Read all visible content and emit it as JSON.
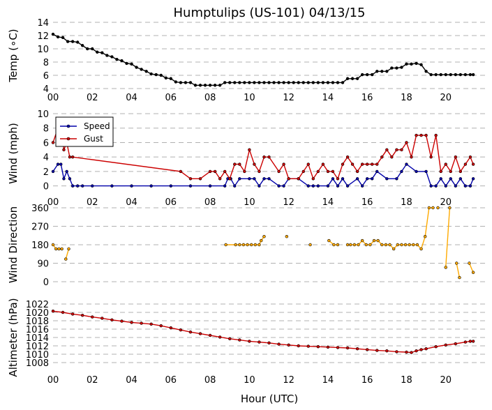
{
  "title": "Humptulips (US-101) 04/13/15",
  "xlabel": "Hour (UTC)",
  "x_ticks": [
    "00",
    "02",
    "04",
    "06",
    "08",
    "10",
    "12",
    "14",
    "16",
    "18",
    "20"
  ],
  "chart_data": [
    {
      "type": "line",
      "ylabel": "Temp (∘C)",
      "xlim": [
        0,
        22
      ],
      "ylim": [
        4,
        14
      ],
      "y_ticks": [
        4,
        6,
        8,
        10,
        12,
        14
      ],
      "grid": true,
      "series": [
        {
          "color": "#000000",
          "x": [
            0.0,
            0.25,
            0.5,
            0.75,
            1.0,
            1.25,
            1.5,
            1.75,
            2.0,
            2.25,
            2.5,
            2.75,
            3.0,
            3.25,
            3.5,
            3.75,
            4.0,
            4.25,
            4.5,
            4.75,
            5.0,
            5.25,
            5.5,
            5.75,
            6.0,
            6.25,
            6.5,
            6.75,
            7.0,
            7.25,
            7.5,
            7.75,
            8.0,
            8.25,
            8.5,
            8.75,
            9.0,
            9.25,
            9.5,
            9.75,
            10.0,
            10.25,
            10.5,
            10.75,
            11.0,
            11.25,
            11.5,
            11.75,
            12.0,
            12.25,
            12.5,
            12.75,
            13.0,
            13.25,
            13.5,
            13.75,
            14.0,
            14.25,
            14.5,
            14.75,
            15.0,
            15.25,
            15.5,
            15.75,
            16.0,
            16.25,
            16.5,
            16.75,
            17.0,
            17.25,
            17.5,
            17.75,
            18.0,
            18.25,
            18.5,
            18.75,
            19.0,
            19.25,
            19.5,
            19.75,
            20.0,
            20.25,
            20.5,
            20.75,
            21.0,
            21.25,
            21.4
          ],
          "y": [
            12.2,
            11.8,
            11.7,
            11.1,
            11.1,
            11.0,
            10.5,
            10.0,
            10.0,
            9.5,
            9.4,
            9.0,
            8.8,
            8.4,
            8.2,
            7.8,
            7.7,
            7.2,
            6.9,
            6.6,
            6.2,
            6.1,
            6.0,
            5.6,
            5.5,
            5.0,
            4.9,
            4.9,
            4.9,
            4.5,
            4.5,
            4.5,
            4.5,
            4.5,
            4.5,
            4.9,
            4.9,
            4.9,
            4.9,
            4.9,
            4.9,
            4.9,
            4.9,
            4.9,
            4.9,
            4.9,
            4.9,
            4.9,
            4.9,
            4.9,
            4.9,
            4.9,
            4.9,
            4.9,
            4.9,
            4.9,
            4.9,
            4.9,
            4.9,
            4.9,
            5.5,
            5.5,
            5.5,
            6.1,
            6.1,
            6.1,
            6.6,
            6.6,
            6.6,
            7.1,
            7.1,
            7.2,
            7.7,
            7.7,
            7.8,
            7.6,
            6.6,
            6.1,
            6.1,
            6.1,
            6.1,
            6.1,
            6.1,
            6.1,
            6.1,
            6.1,
            6.1
          ]
        }
      ]
    },
    {
      "type": "line",
      "ylabel": "Wind (mph)",
      "xlim": [
        0,
        22
      ],
      "ylim": [
        -1,
        10
      ],
      "y_ticks": [
        0,
        2,
        4,
        6,
        8,
        10
      ],
      "grid": true,
      "legend_placement": "top-left",
      "series": [
        {
          "name": "Speed",
          "color": "#0000aa",
          "x": [
            0.0,
            0.25,
            0.4,
            0.55,
            0.7,
            0.85,
            1.0,
            1.25,
            1.5,
            2.0,
            3.0,
            4.0,
            5.0,
            6.0,
            7.0,
            8.0,
            8.75,
            8.9,
            9.05,
            9.25,
            9.5,
            10.0,
            10.25,
            10.5,
            10.75,
            11.0,
            11.5,
            11.75,
            12.0,
            12.5,
            13.0,
            13.25,
            13.5,
            14.0,
            14.25,
            14.5,
            14.75,
            15.0,
            15.5,
            15.75,
            16.0,
            16.25,
            16.5,
            17.0,
            17.5,
            17.75,
            18.0,
            18.5,
            19.0,
            19.25,
            19.5,
            19.75,
            20.0,
            20.25,
            20.5,
            20.75,
            21.0,
            21.25,
            21.4
          ],
          "y": [
            2,
            3,
            3,
            1,
            2,
            1,
            0,
            0,
            0,
            0,
            0,
            0,
            0,
            0,
            0,
            0,
            0,
            1,
            1,
            0,
            1,
            1,
            1,
            0,
            1,
            1,
            0,
            0,
            1,
            1,
            0,
            0,
            0,
            0,
            1,
            0,
            1,
            0,
            1,
            0,
            1,
            1,
            2,
            1,
            1,
            2,
            3,
            2,
            2,
            0,
            0,
            1,
            0,
            1,
            0,
            1,
            0,
            0,
            1
          ]
        },
        {
          "name": "Gust",
          "color": "#cc0000",
          "x": [
            0.0,
            0.25,
            0.4,
            0.55,
            0.7,
            0.85,
            1.0,
            6.5,
            7.0,
            7.5,
            8.0,
            8.25,
            8.5,
            8.75,
            9.0,
            9.25,
            9.5,
            9.75,
            10.0,
            10.25,
            10.5,
            10.75,
            11.0,
            11.5,
            11.75,
            12.0,
            12.5,
            12.75,
            13.0,
            13.25,
            13.5,
            13.75,
            14.0,
            14.25,
            14.5,
            14.75,
            15.0,
            15.25,
            15.5,
            15.75,
            16.0,
            16.25,
            16.5,
            16.75,
            17.0,
            17.25,
            17.5,
            17.75,
            18.0,
            18.25,
            18.5,
            18.75,
            19.0,
            19.25,
            19.5,
            19.75,
            20.0,
            20.25,
            20.5,
            20.75,
            21.0,
            21.25,
            21.4
          ],
          "y": [
            6,
            8,
            8,
            5,
            6,
            4,
            4,
            2,
            1,
            1,
            2,
            2,
            1,
            2,
            1,
            3,
            3,
            2,
            5,
            3,
            2,
            4,
            4,
            2,
            3,
            1,
            1,
            2,
            3,
            1,
            2,
            3,
            2,
            2,
            1,
            3,
            4,
            3,
            2,
            3,
            3,
            3,
            3,
            4,
            5,
            4,
            5,
            5,
            6,
            4,
            7,
            7,
            7,
            4,
            7,
            2,
            3,
            2,
            4,
            2,
            3,
            4,
            3
          ]
        }
      ]
    },
    {
      "type": "line",
      "ylabel": "Wind Direction",
      "xlim": [
        0,
        22
      ],
      "ylim": [
        0,
        360
      ],
      "y_ticks": [
        0,
        90,
        180,
        270,
        360
      ],
      "grid": true,
      "series": [
        {
          "color": "#ffaa00",
          "segments": [
            {
              "x": [
                0.0,
                0.15,
                0.3,
                0.45
              ],
              "y": [
                180,
                160,
                160,
                160
              ]
            },
            {
              "x": [
                0.65,
                0.8
              ],
              "y": [
                110,
                160
              ]
            },
            {
              "x": [
                8.8,
                9.3,
                9.5,
                9.7,
                9.9,
                10.1,
                10.3,
                10.5,
                10.6,
                10.75
              ],
              "y": [
                180,
                180,
                180,
                180,
                180,
                180,
                180,
                180,
                200,
                220
              ]
            },
            {
              "x": [
                11.9
              ],
              "y": [
                220
              ]
            },
            {
              "x": [
                13.1
              ],
              "y": [
                180
              ]
            },
            {
              "x": [
                14.05,
                14.3,
                14.5
              ],
              "y": [
                200,
                180,
                180
              ]
            },
            {
              "x": [
                15.0,
                15.15,
                15.35,
                15.55,
                15.75,
                15.95,
                16.15,
                16.35,
                16.55,
                16.75,
                16.95,
                17.15,
                17.35,
                17.55,
                17.75,
                17.95,
                18.15,
                18.35,
                18.55,
                18.75,
                18.95,
                19.15,
                19.35
              ],
              "y": [
                180,
                180,
                180,
                180,
                200,
                180,
                180,
                200,
                200,
                180,
                180,
                180,
                160,
                180,
                180,
                180,
                180,
                180,
                180,
                160,
                220,
                360,
                360
              ]
            },
            {
              "x": [
                19.6
              ],
              "y": [
                360
              ]
            },
            {
              "x": [
                20.0,
                20.2
              ],
              "y": [
                70,
                360
              ]
            },
            {
              "x": [
                20.55,
                20.7
              ],
              "y": [
                90,
                20
              ]
            },
            {
              "x": [
                21.2,
                21.4
              ],
              "y": [
                90,
                45
              ]
            }
          ]
        }
      ]
    },
    {
      "type": "line",
      "ylabel": "Altimeter (hPa)",
      "xlim": [
        0,
        22
      ],
      "ylim": [
        1006,
        1022
      ],
      "y_ticks": [
        1008,
        1010,
        1012,
        1014,
        1016,
        1018,
        1020,
        1022
      ],
      "grid": true,
      "series": [
        {
          "color": "#cc0000",
          "x": [
            0.0,
            0.5,
            1.0,
            1.5,
            2.0,
            2.5,
            3.0,
            3.5,
            4.0,
            4.5,
            5.0,
            5.5,
            6.0,
            6.5,
            7.0,
            7.5,
            8.0,
            8.5,
            9.0,
            9.5,
            10.0,
            10.5,
            11.0,
            11.5,
            12.0,
            12.5,
            13.0,
            13.5,
            14.0,
            14.5,
            15.0,
            15.5,
            16.0,
            16.5,
            17.0,
            17.5,
            18.0,
            18.25,
            18.5,
            18.75,
            19.0,
            19.5,
            20.0,
            20.5,
            21.0,
            21.25,
            21.4
          ],
          "y": [
            1020.3,
            1020.0,
            1019.6,
            1019.3,
            1018.9,
            1018.6,
            1018.2,
            1017.9,
            1017.6,
            1017.4,
            1017.2,
            1016.8,
            1016.3,
            1015.8,
            1015.3,
            1014.9,
            1014.5,
            1014.1,
            1013.7,
            1013.4,
            1013.1,
            1012.9,
            1012.7,
            1012.4,
            1012.2,
            1012.0,
            1011.9,
            1011.8,
            1011.7,
            1011.6,
            1011.5,
            1011.3,
            1011.1,
            1010.9,
            1010.8,
            1010.6,
            1010.5,
            1010.4,
            1010.8,
            1011.1,
            1011.3,
            1011.8,
            1012.2,
            1012.5,
            1012.9,
            1013.1,
            1013.1
          ]
        }
      ]
    }
  ]
}
